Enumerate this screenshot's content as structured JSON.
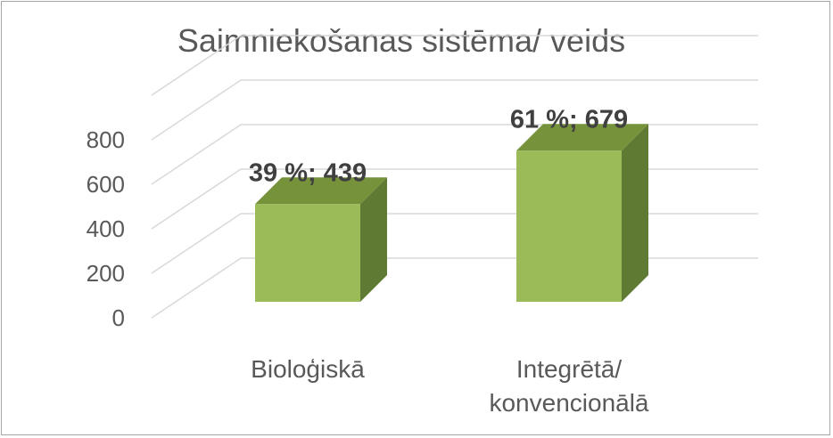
{
  "chart_data": {
    "type": "bar",
    "title": "Saimniekošanas sistēma/ veids",
    "categories": [
      [
        "Bioloģiskā"
      ],
      [
        "Integrētā/",
        "konvencionālā"
      ]
    ],
    "values": [
      439,
      679
    ],
    "percentages": [
      "39 %",
      "61 %"
    ],
    "data_labels": [
      "39 %; 439",
      "61 %; 679"
    ],
    "yticks": [
      "0",
      "200",
      "400",
      "600",
      "800"
    ],
    "ylim": [
      0,
      1000
    ],
    "grid": true,
    "legend": "none",
    "three_d": true,
    "colors": {
      "bar_front": "#9bbb59",
      "bar_side": "#5f7a33",
      "bar_top": "#76933c"
    }
  }
}
